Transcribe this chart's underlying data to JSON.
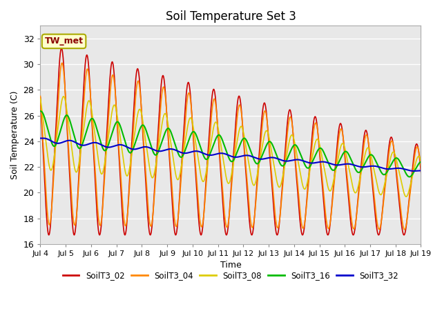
{
  "title": "Soil Temperature Set 3",
  "xlabel": "Time",
  "ylabel": "Soil Temperature (C)",
  "ylim": [
    16,
    33
  ],
  "xlim": [
    0,
    360
  ],
  "bg_color": "#e8e8e8",
  "annotation_text": "TW_met",
  "annotation_color": "#8b0000",
  "annotation_bg": "#ffffcc",
  "annotation_border": "#aaaa00",
  "series": {
    "SoilT3_02": {
      "color": "#cc0000",
      "lw": 1.2
    },
    "SoilT3_04": {
      "color": "#ff8800",
      "lw": 1.2
    },
    "SoilT3_08": {
      "color": "#ddcc00",
      "lw": 1.2
    },
    "SoilT3_16": {
      "color": "#00bb00",
      "lw": 1.5
    },
    "SoilT3_32": {
      "color": "#0000cc",
      "lw": 1.5
    }
  },
  "xtick_positions": [
    0,
    24,
    48,
    72,
    96,
    120,
    144,
    168,
    192,
    216,
    240,
    264,
    288,
    312,
    336,
    360
  ],
  "xtick_labels": [
    "Jul 4",
    "Jul 5",
    "Jul 6",
    "Jul 7",
    "Jul 8",
    "Jul 9",
    "Jul 10",
    "Jul 11",
    "Jul 12",
    "Jul 13",
    "Jul 14",
    "Jul 15",
    "Jul 16",
    "Jul 17",
    "Jul 18",
    "Jul 19"
  ],
  "ytick_positions": [
    16,
    18,
    20,
    22,
    24,
    26,
    28,
    30,
    32
  ],
  "ytick_labels": [
    "16",
    "18",
    "20",
    "22",
    "24",
    "26",
    "28",
    "30",
    "32"
  ]
}
